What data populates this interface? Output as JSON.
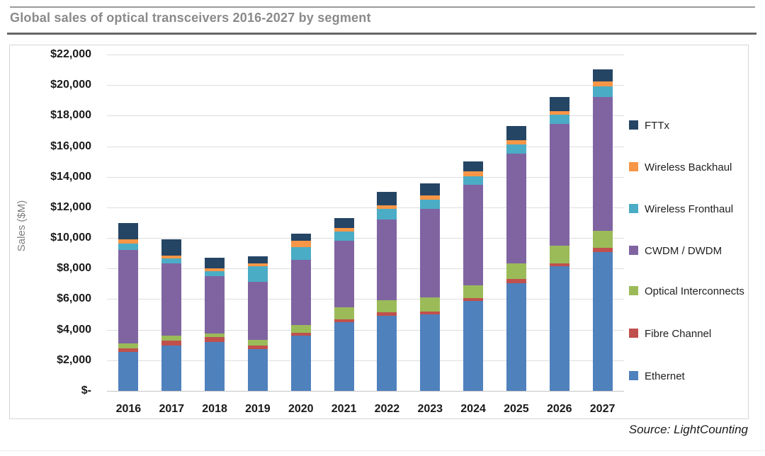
{
  "title": "Global sales of optical transceivers 2016-2027 by segment",
  "source_note": "Source: LightCounting",
  "chart_data": {
    "type": "bar",
    "stacked": true,
    "title": "Global sales of optical transceivers 2016-2027 by segment",
    "xlabel": "",
    "ylabel": "Sales ($M)",
    "ylim": [
      0,
      22000
    ],
    "grid": true,
    "legend_position": "right",
    "categories": [
      "2016",
      "2017",
      "2018",
      "2019",
      "2020",
      "2021",
      "2022",
      "2023",
      "2024",
      "2025",
      "2026",
      "2027"
    ],
    "y_ticks": [
      "$-",
      "$2,000",
      "$4,000",
      "$6,000",
      "$8,000",
      "$10,000",
      "$12,000",
      "$14,000",
      "$16,000",
      "$18,000",
      "$20,000",
      "$22,000"
    ],
    "series": [
      {
        "name": "Ethernet",
        "color": "#4F81BD",
        "values": [
          2550,
          2950,
          3200,
          2750,
          3600,
          4500,
          4900,
          5000,
          5900,
          7050,
          8150,
          9100
        ]
      },
      {
        "name": "Fibre Channel",
        "color": "#C0504D",
        "values": [
          250,
          350,
          300,
          200,
          200,
          200,
          250,
          200,
          150,
          250,
          200,
          250
        ]
      },
      {
        "name": "Optical Interconnects",
        "color": "#9BBB59",
        "values": [
          300,
          300,
          250,
          400,
          500,
          750,
          800,
          900,
          850,
          1050,
          1150,
          1100
        ]
      },
      {
        "name": "CWDM / DWDM",
        "color": "#8064A2",
        "values": [
          6100,
          4750,
          3750,
          3800,
          4250,
          4350,
          5250,
          5800,
          6600,
          7150,
          7950,
          8750
        ]
      },
      {
        "name": "Wireless Fronthaul",
        "color": "#4BACC6",
        "values": [
          450,
          300,
          350,
          1000,
          850,
          600,
          700,
          600,
          550,
          600,
          600,
          700
        ]
      },
      {
        "name": "Wireless Backhaul",
        "color": "#F79646",
        "values": [
          250,
          200,
          150,
          200,
          400,
          250,
          250,
          300,
          300,
          300,
          250,
          350
        ]
      },
      {
        "name": "FTTx",
        "color": "#254565",
        "values": [
          1100,
          1050,
          700,
          450,
          500,
          650,
          850,
          750,
          650,
          900,
          900,
          800
        ]
      }
    ],
    "totals": [
      11000,
      9900,
      8700,
      8800,
      10300,
      11300,
      13000,
      13550,
      15000,
      17300,
      19200,
      21050
    ],
    "legend_order_top_to_bottom": [
      "FTTx",
      "Wireless Backhaul",
      "Wireless Fronthaul",
      "CWDM / DWDM",
      "Optical Interconnects",
      "Fibre Channel",
      "Ethernet"
    ]
  }
}
